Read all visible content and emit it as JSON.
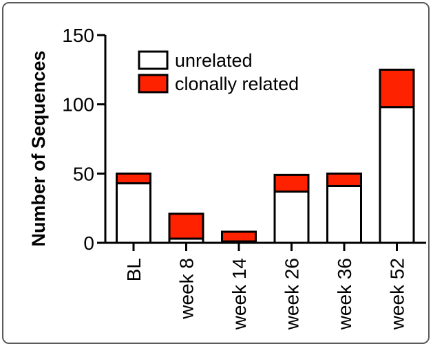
{
  "chart_data": {
    "type": "bar",
    "stacked": true,
    "categories": [
      "BL",
      "week 8",
      "week 14",
      "week 26",
      "week 36",
      "week 52"
    ],
    "series": [
      {
        "name": "unrelated",
        "color": "#ffffff",
        "values": [
          43,
          3,
          1,
          37,
          41,
          98
        ]
      },
      {
        "name": "clonally related",
        "color": "#ff2200",
        "values": [
          7,
          18,
          7,
          12,
          9,
          27
        ]
      }
    ],
    "title": "",
    "xlabel": "",
    "ylabel": "Number of Sequences",
    "ylim": [
      0,
      150
    ],
    "yticks": [
      0,
      50,
      100,
      150
    ],
    "legend_position": "top",
    "grid": false
  }
}
